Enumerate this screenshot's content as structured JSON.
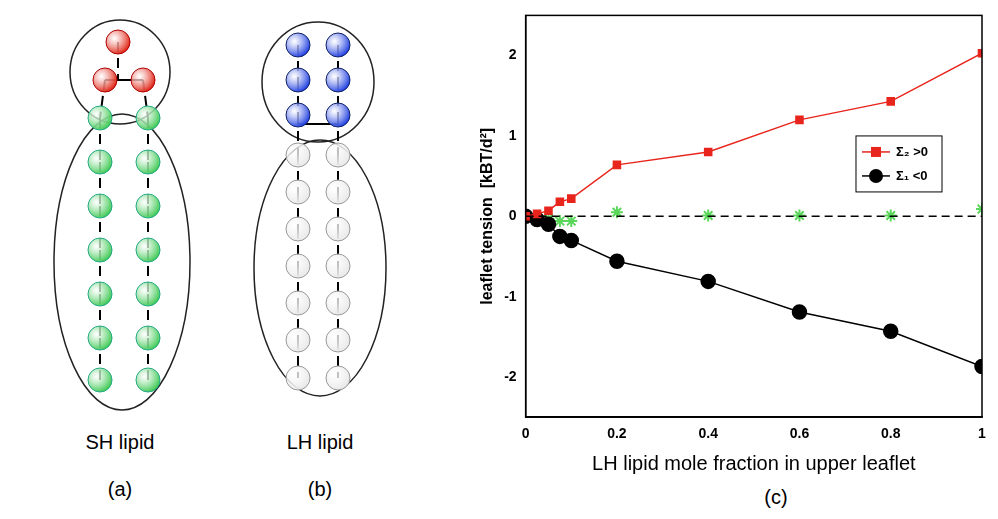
{
  "panels": [
    {
      "letter": "(a)",
      "label": "SH lipid"
    },
    {
      "letter": "(b)",
      "label": "LH lipid"
    },
    {
      "letter": "(c)"
    }
  ],
  "chart_data": {
    "type": "line",
    "x_label": "LH lipid mole fraction in upper leaflet",
    "y_label": "leaflet tension  [kBT/d²]",
    "x": [
      0,
      0.025,
      0.05,
      0.075,
      0.1,
      0.2,
      0.4,
      0.6,
      0.8,
      1
    ],
    "series": [
      {
        "name": "Σ₂ >0",
        "color": "#e8251c",
        "marker": "square",
        "line_style": "solid",
        "values": [
          0,
          0.03,
          0.07,
          0.18,
          0.22,
          0.64,
          0.8,
          1.2,
          1.43,
          2.03
        ]
      },
      {
        "name": "Σ₁ <0",
        "color": "#000000",
        "marker": "circle",
        "line_style": "solid",
        "values": [
          0,
          -0.04,
          -0.1,
          -0.25,
          -0.3,
          -0.56,
          -0.81,
          -1.19,
          -1.43,
          -1.87
        ]
      },
      {
        "color": "#5ad65a",
        "marker": "star",
        "line_style": "none",
        "values": [
          0,
          -0.01,
          -0.03,
          -0.06,
          -0.06,
          0.05,
          0.01,
          0.01,
          0.01,
          0.09
        ]
      }
    ],
    "hline": {
      "y": 0,
      "line_style": "dashed"
    },
    "xlim": [
      0,
      1
    ],
    "xticks": [
      0,
      0.2,
      0.4,
      0.6,
      0.8,
      1
    ],
    "ylim": [
      -2.5,
      2.5
    ],
    "yticks": [
      -2,
      -1,
      0,
      1,
      2
    ],
    "grid": false,
    "legend": "right"
  }
}
